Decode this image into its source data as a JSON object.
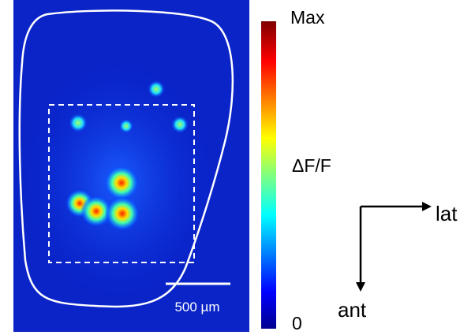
{
  "image": {
    "scale_bar": "500 µm"
  },
  "colorbar": {
    "max_label": "Max",
    "label": "ΔF/F",
    "min_label": "0"
  },
  "orientation": {
    "x_label": "lat",
    "y_label": "ant"
  }
}
